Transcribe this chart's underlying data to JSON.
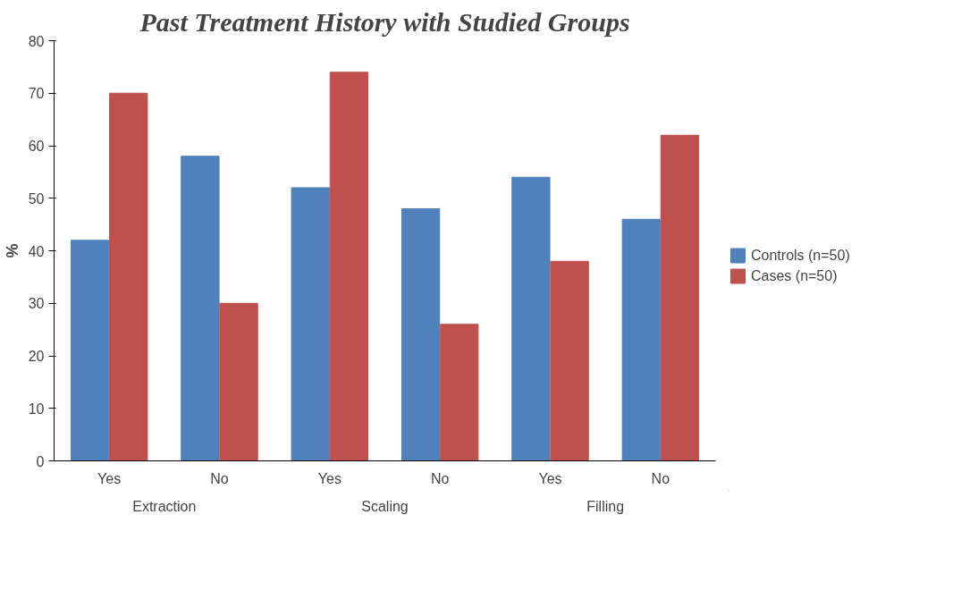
{
  "chart_data": {
    "type": "bar",
    "title": "Past Treatment History with Studied Groups",
    "ylabel": "%",
    "categories": [
      "Yes",
      "No",
      "Yes",
      "No",
      "Yes",
      "No"
    ],
    "annotations": [
      "Extraction",
      "Scaling",
      "Filling"
    ],
    "series": [
      {
        "name": "Controls (n=50)",
        "color": "#4f81bd",
        "values": [
          42,
          58,
          52,
          48,
          54,
          46
        ]
      },
      {
        "name": "Cases (n=50)",
        "color": "#c0504d",
        "values": [
          70,
          30,
          74,
          26,
          38,
          62
        ]
      }
    ],
    "ylim": [
      0,
      80
    ],
    "yticks": [
      0,
      10,
      20,
      30,
      40,
      50,
      60,
      70,
      80
    ],
    "grid": false,
    "legend": "right"
  }
}
